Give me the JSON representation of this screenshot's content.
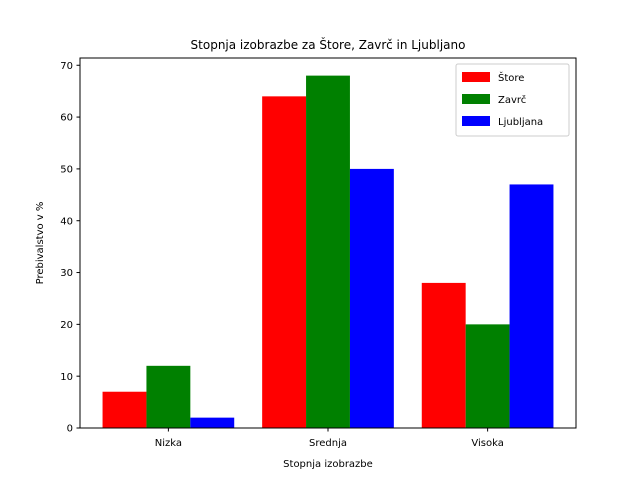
{
  "chart_data": {
    "type": "bar",
    "title": "Stopnja izobrazbe za Štore, Zavrč in Ljubljano",
    "xlabel": "Stopnja izobrazbe",
    "ylabel": "Prebivalstvo v %",
    "categories": [
      "Nizka",
      "Srednja",
      "Visoka"
    ],
    "series": [
      {
        "name": "Štore",
        "color": "#ff0000",
        "values": [
          7,
          64,
          28
        ]
      },
      {
        "name": "Zavrč",
        "color": "#008000",
        "values": [
          12,
          68,
          20
        ]
      },
      {
        "name": "Ljubljana",
        "color": "#0000ff",
        "values": [
          2,
          50,
          47
        ]
      }
    ],
    "ylim": [
      0,
      71.4
    ],
    "yticks": [
      0,
      10,
      20,
      30,
      40,
      50,
      60,
      70
    ],
    "legend_position": "top-right",
    "grid": false
  }
}
